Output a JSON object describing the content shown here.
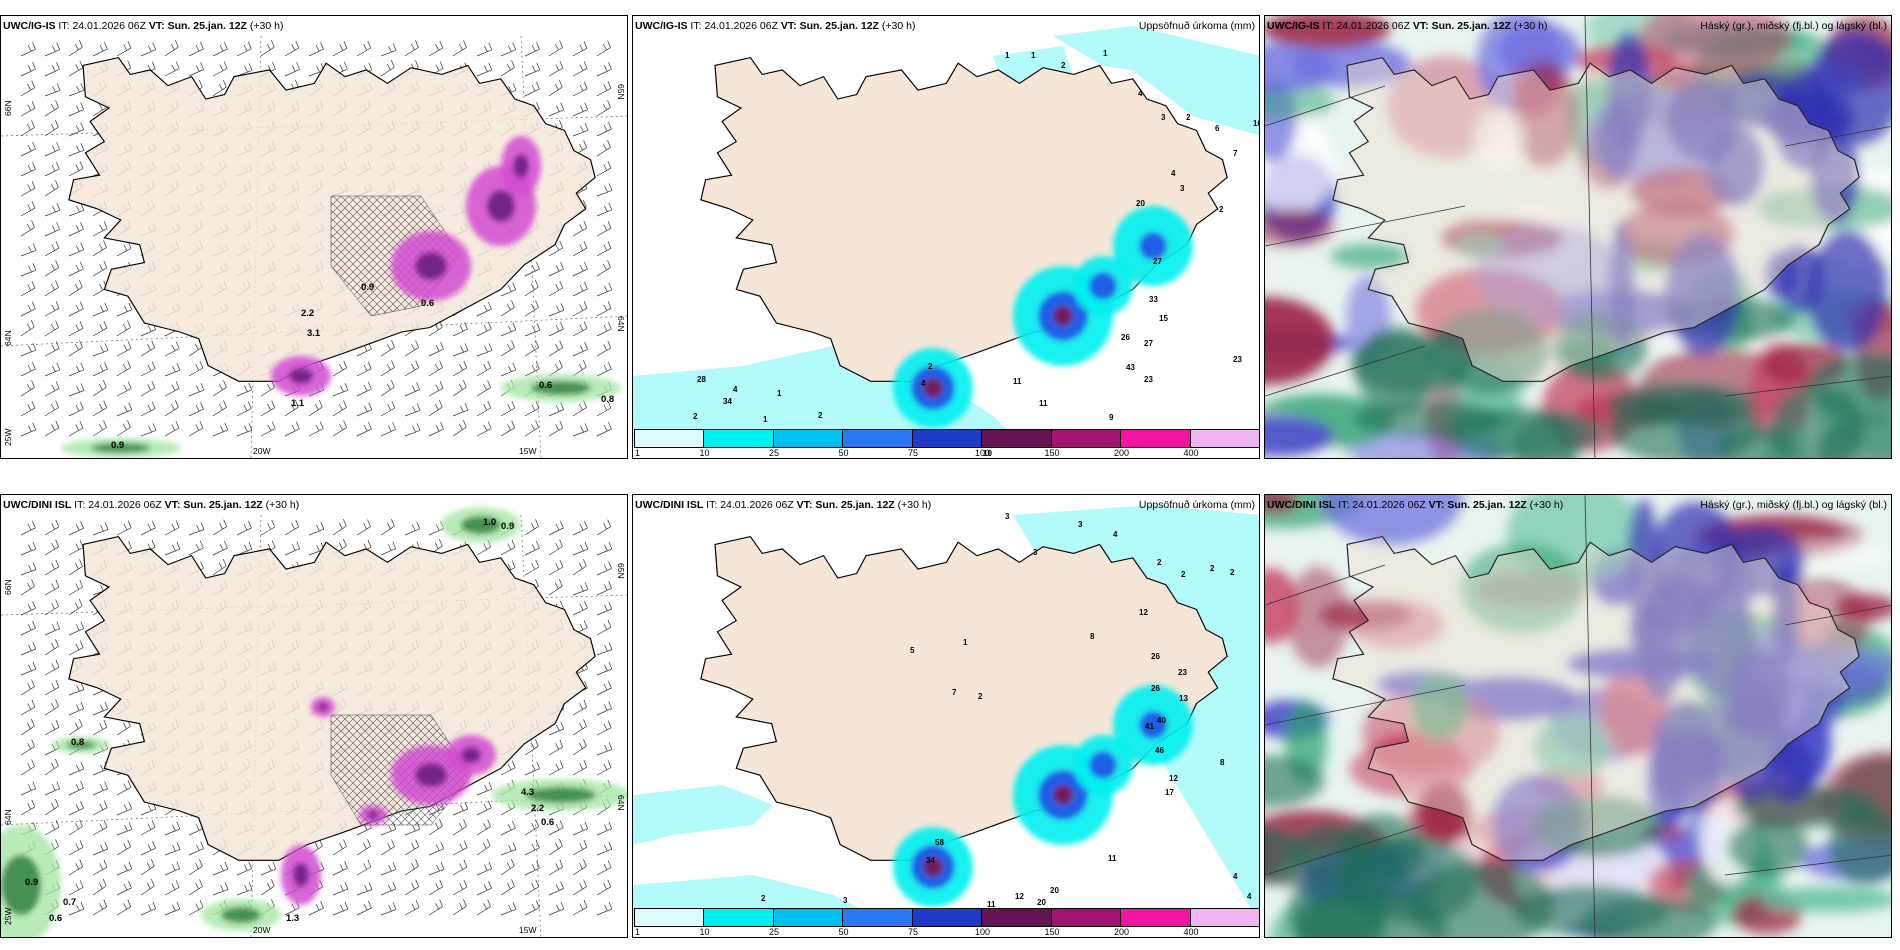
{
  "panels": [
    {
      "header": {
        "model": "UWC/IG-IS",
        "it_label": "IT:",
        "it_value": "24.01.2026 06Z",
        "vt_label": "VT:",
        "vt_value": "Sun. 25.jan. 12Z",
        "lead": "(+30 h)"
      },
      "right_title": "",
      "axes": {
        "x": [
          "20W",
          "15W"
        ],
        "y_left": [
          "66N",
          "64N"
        ],
        "y_right": [
          "65N",
          "64N"
        ],
        "bottom_left": "25W"
      },
      "labels": [
        "0.6",
        "0.8",
        "0.9",
        "0.5",
        "2.2",
        "3.1",
        "0.6",
        "0.9",
        "1.1"
      ]
    },
    {
      "header": {
        "model": "UWC/IG-IS",
        "it_label": "IT:",
        "it_value": "24.01.2026 06Z",
        "vt_label": "VT:",
        "vt_value": "Sun. 25.jan. 12Z",
        "lead": "(+30 h)"
      },
      "right_title": "Uppsöfnuð úrkoma (mm)",
      "colorbar": [
        "1",
        "10",
        "25",
        "50",
        "75",
        "100",
        "150",
        "200",
        "400"
      ],
      "labels": [
        "1",
        "1",
        "2",
        "1",
        "4",
        "3",
        "2",
        "6",
        "4",
        "3",
        "2",
        "20",
        "27",
        "33",
        "15",
        "26",
        "27",
        "43",
        "23",
        "11",
        "11",
        "9",
        "10",
        "16",
        "10",
        "23",
        "16",
        "7",
        "4",
        "2",
        "2",
        "34",
        "28",
        "4",
        "2",
        "1",
        "1"
      ]
    },
    {
      "header": {
        "model": "UWC/IG-IS",
        "it_label": "IT:",
        "it_value": "24.01.2026 06Z",
        "vt_label": "VT:",
        "vt_value": "Sun. 25.jan. 12Z",
        "lead": "(+30 h)"
      },
      "right_title": "Háský (gr.), miðský (fj.bl.) og lágský (bl.)"
    },
    {
      "header": {
        "model": "UWC/DINI ISL",
        "it_label": "IT:",
        "it_value": "24.01.2026 06Z",
        "vt_label": "VT:",
        "vt_value": "Sun. 25.jan. 12Z",
        "lead": "(+30 h)"
      },
      "right_title": "",
      "axes": {
        "x": [
          "20W",
          "15W"
        ],
        "y_left": [
          "66N",
          "64N"
        ],
        "y_right": [
          "65N",
          "64N"
        ],
        "bottom_left": "25W"
      },
      "labels": [
        "1.0",
        "0.9",
        "0.8",
        "0.9",
        "0.7",
        "0.6",
        "1.3",
        "4.3",
        "2.2",
        "0.6"
      ]
    },
    {
      "header": {
        "model": "UWC/DINI ISL",
        "it_label": "IT:",
        "it_value": "24.01.2026 06Z",
        "vt_label": "VT:",
        "vt_value": "Sun. 25.jan. 12Z",
        "lead": "(+30 h)"
      },
      "right_title": "Uppsöfnuð úrkoma (mm)",
      "colorbar": [
        "1",
        "10",
        "25",
        "50",
        "75",
        "100",
        "150",
        "200",
        "400"
      ],
      "labels": [
        "3",
        "3",
        "4",
        "3",
        "2",
        "2",
        "2",
        "2",
        "12",
        "26",
        "23",
        "26",
        "13",
        "40",
        "41",
        "46",
        "12",
        "17",
        "8",
        "11",
        "20",
        "20",
        "12",
        "11",
        "6",
        "6",
        "4",
        "4",
        "34",
        "58",
        "3",
        "4",
        "2",
        "2",
        "1",
        "2",
        "5",
        "7",
        "8"
      ]
    },
    {
      "header": {
        "model": "UWC/DINI ISL",
        "it_label": "IT:",
        "it_value": "24.01.2026 06Z",
        "vt_label": "VT:",
        "vt_value": "Sun. 25.jan. 12Z",
        "lead": "(+30 h)"
      },
      "right_title": "Háský (gr.), miðský (fj.bl.) og lágský (bl.)"
    }
  ],
  "colors": {
    "land": "#f5e6d8",
    "precip_light": "#b3fafa",
    "precip_cyan": "#00f0f0",
    "precip_blue": "#1e50e6",
    "precip_purple": "#7c1450",
    "snow_magenta": "#d24bd2",
    "cloud_high": "#c84664",
    "cloud_mid": "#3c3cc8",
    "cloud_low": "#2aa06e"
  },
  "colorbar_colors": [
    "#dcfcfc",
    "#00f0f0",
    "#00c0f0",
    "#2878f0",
    "#1e3cc8",
    "#641450",
    "#a01470",
    "#f014a0",
    "#f0b4f0"
  ]
}
